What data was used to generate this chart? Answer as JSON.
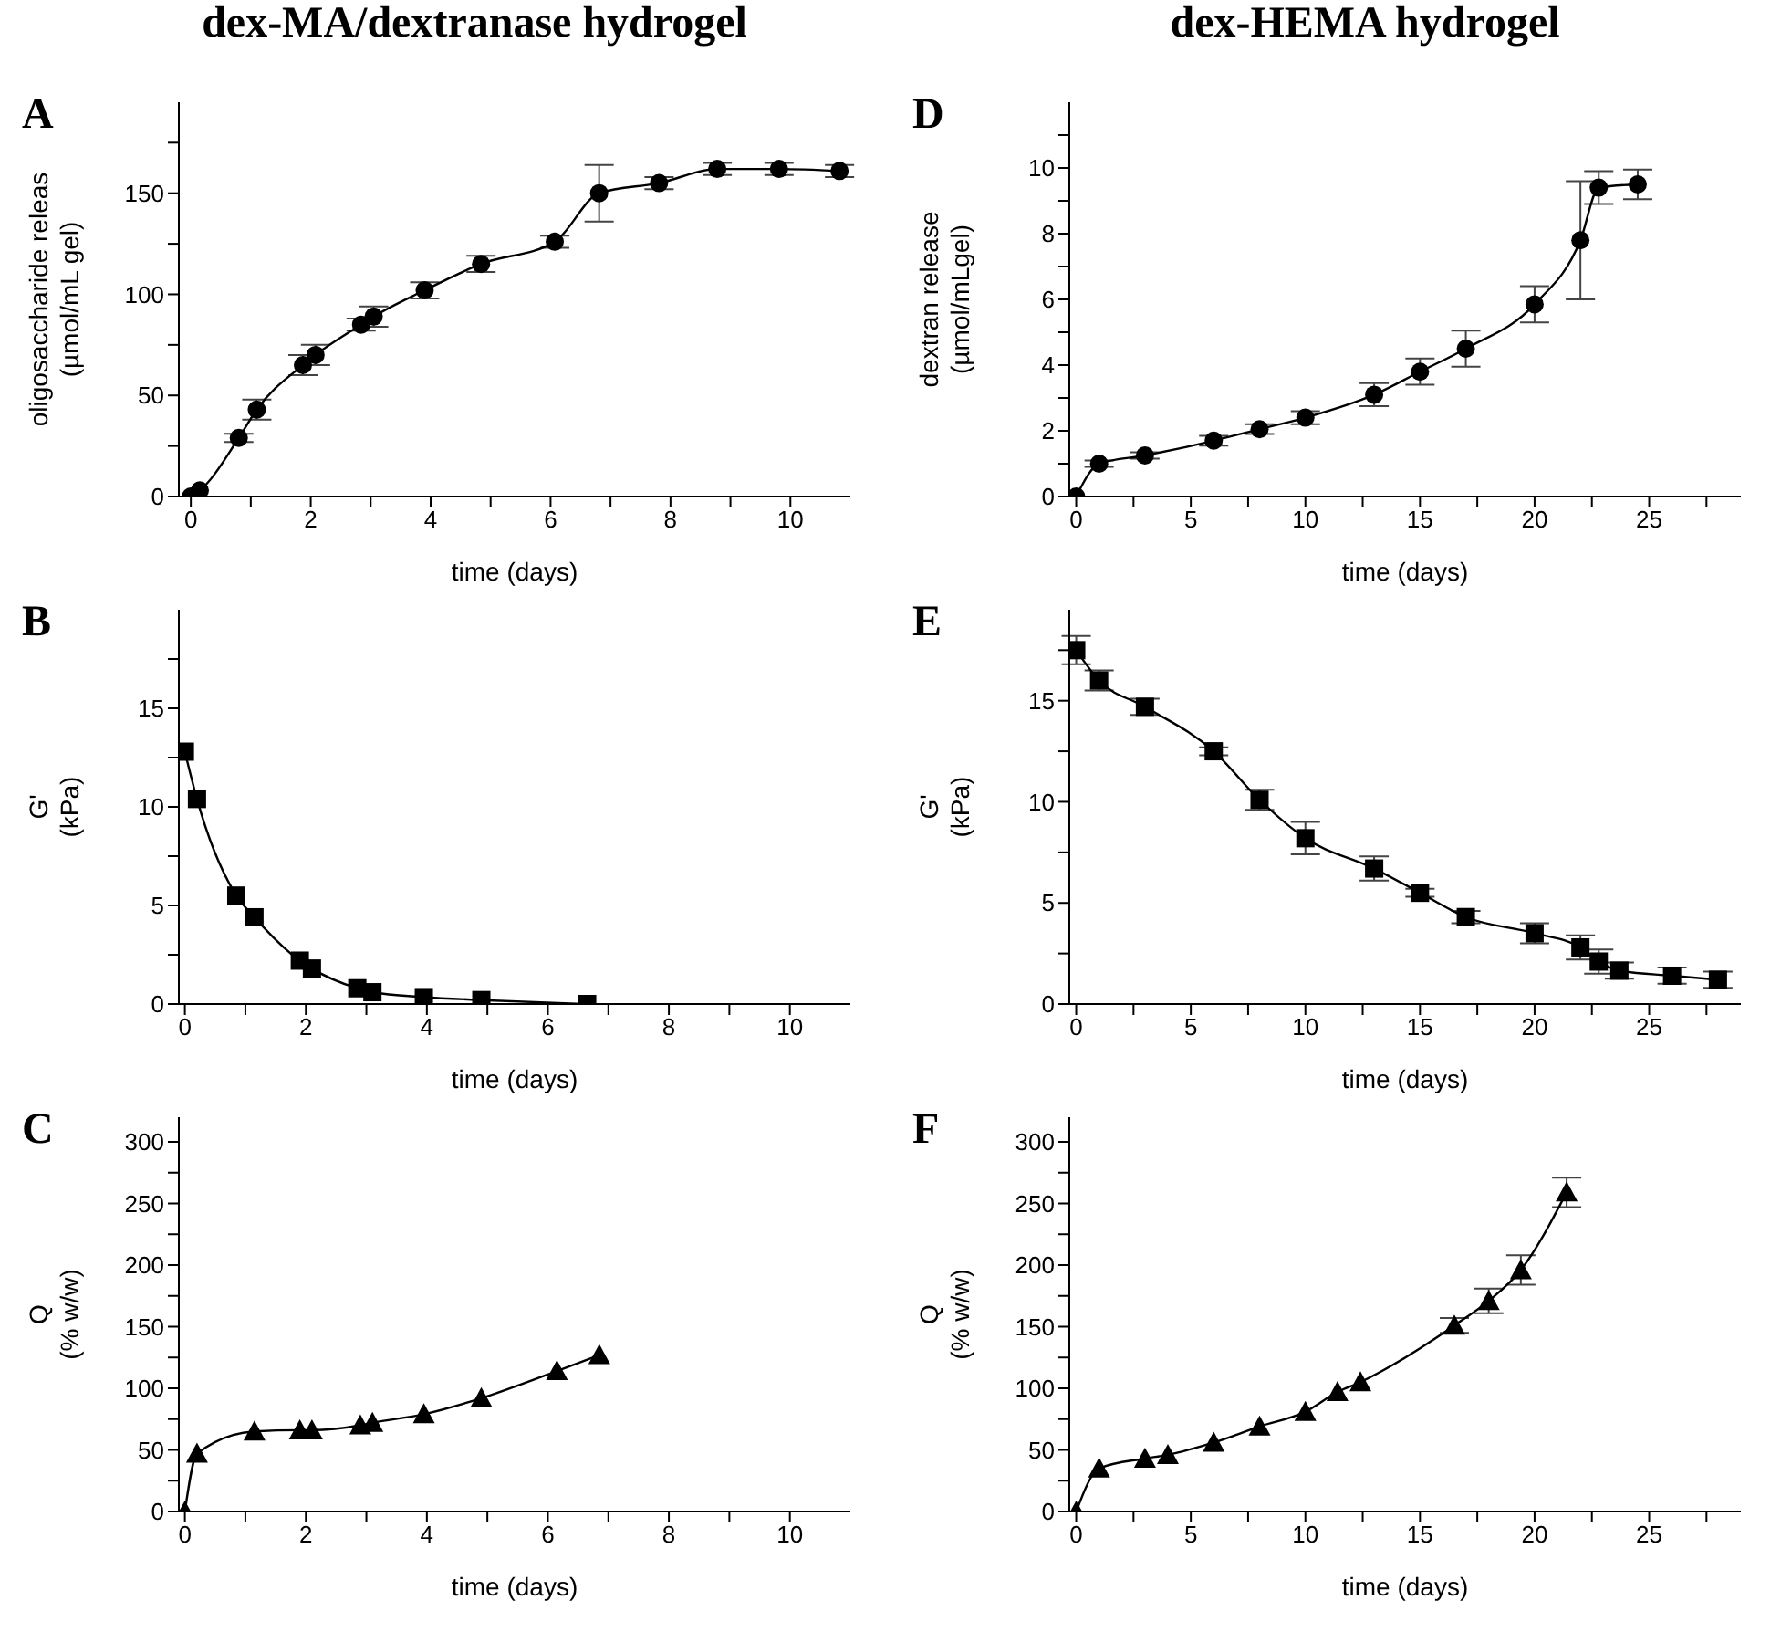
{
  "chart_data": [
    {
      "type": "line",
      "title": "dex-MA/dextranase hydrogel",
      "annotations": [
        "A"
      ],
      "xlabel": "time (days)",
      "ylabel": "oligosaccharide releas\n(µmol/mL gel)",
      "marker": "circle",
      "line_style": "solid",
      "grid": false,
      "legend": false,
      "x": [
        0,
        0.15,
        0.8,
        1.1,
        1.87,
        2.08,
        2.84,
        3.05,
        3.9,
        4.84,
        6.07,
        6.81,
        7.81,
        8.78,
        9.81,
        10.82
      ],
      "series": [
        {
          "color": "#000000",
          "values": [
            0,
            3,
            29,
            43,
            65,
            70,
            85,
            89,
            102,
            115,
            126,
            150,
            155,
            162,
            162,
            161
          ],
          "errors": [
            null,
            null,
            2,
            5,
            5,
            5,
            3,
            5,
            4,
            4,
            3,
            14,
            3,
            3,
            3,
            3
          ]
        }
      ],
      "xlim": [
        -0.2,
        11
      ],
      "xticks": [
        0,
        {
          "value": 1,
          "label": null
        },
        2,
        {
          "value": 3,
          "label": null
        },
        4,
        {
          "value": 5,
          "label": null
        },
        6,
        {
          "value": 7,
          "label": null
        },
        8,
        {
          "value": 9,
          "label": null
        },
        10
      ],
      "ylim": [
        0,
        195
      ],
      "yticks": [
        0,
        {
          "value": 25,
          "label": null
        },
        50,
        {
          "value": 75,
          "label": null
        },
        100,
        {
          "value": 125,
          "label": null
        },
        150,
        {
          "value": 175,
          "label": null
        }
      ]
    },
    {
      "type": "line",
      "title": "dex-HEMA hydrogel",
      "annotations": [
        "D"
      ],
      "xlabel": "time (days)",
      "ylabel": "dextran release\n(µmol/mLgel)",
      "marker": "circle",
      "line_style": "solid",
      "grid": false,
      "legend": false,
      "x": [
        0,
        1,
        3,
        6,
        8,
        10,
        13,
        15,
        17,
        20,
        22,
        22.8,
        24.5
      ],
      "series": [
        {
          "color": "#000000",
          "values": [
            0,
            1.0,
            1.25,
            1.7,
            2.05,
            2.4,
            3.1,
            3.8,
            4.5,
            5.85,
            7.8,
            9.4,
            9.5
          ],
          "errors": [
            null,
            0.1,
            0.1,
            0.15,
            0.15,
            0.2,
            0.35,
            0.4,
            0.55,
            0.55,
            1.8,
            0.5,
            0.45
          ]
        }
      ],
      "xlim": [
        -0.3,
        29
      ],
      "xticks": [
        0,
        {
          "value": 2.5,
          "label": null
        },
        5,
        {
          "value": 7.5,
          "label": null
        },
        10,
        {
          "value": 12.5,
          "label": null
        },
        15,
        {
          "value": 17.5,
          "label": null
        },
        20,
        {
          "value": 22.5,
          "label": null
        },
        25,
        {
          "value": 27.5,
          "label": null
        }
      ],
      "ylim": [
        0,
        12
      ],
      "yticks": [
        0,
        {
          "value": 1,
          "label": null
        },
        2,
        {
          "value": 3,
          "label": null
        },
        4,
        {
          "value": 5,
          "label": null
        },
        6,
        {
          "value": 7,
          "label": null
        },
        8,
        {
          "value": 9,
          "label": null
        },
        10,
        {
          "value": 11,
          "label": null
        }
      ]
    },
    {
      "type": "line",
      "annotations": [
        "B"
      ],
      "xlabel": "time (days)",
      "ylabel": "G'\n(kPa)",
      "marker": "square",
      "line_style": "solid",
      "grid": false,
      "legend": false,
      "x": [
        0,
        0.2,
        0.85,
        1.15,
        1.9,
        2.1,
        2.85,
        3.1,
        3.95,
        4.9,
        6.65
      ],
      "series": [
        {
          "color": "#000000",
          "values": [
            12.8,
            10.4,
            5.5,
            4.4,
            2.2,
            1.8,
            0.8,
            0.6,
            0.35,
            0.2,
            0
          ]
        }
      ],
      "xlim": [
        -0.1,
        11
      ],
      "xticks": [
        0,
        {
          "value": 1,
          "label": null
        },
        2,
        {
          "value": 3,
          "label": null
        },
        4,
        {
          "value": 5,
          "label": null
        },
        6,
        {
          "value": 7,
          "label": null
        },
        8,
        {
          "value": 9,
          "label": null
        },
        10
      ],
      "ylim": [
        0,
        20
      ],
      "yticks": [
        0,
        {
          "value": 2.5,
          "label": null
        },
        5,
        {
          "value": 7.5,
          "label": null
        },
        10,
        {
          "value": 12.5,
          "label": null
        },
        15,
        {
          "value": 17.5,
          "label": null
        }
      ]
    },
    {
      "type": "line",
      "annotations": [
        "E"
      ],
      "xlabel": "time (days)",
      "ylabel": "G'\n(kPa)",
      "marker": "square",
      "line_style": "solid",
      "grid": false,
      "legend": false,
      "x": [
        0,
        1,
        3,
        6,
        8,
        10,
        13,
        15,
        17,
        20,
        22,
        22.8,
        23.7,
        26,
        28
      ],
      "series": [
        {
          "color": "#000000",
          "values": [
            17.5,
            16,
            14.7,
            12.5,
            10.1,
            8.2,
            6.7,
            5.5,
            4.3,
            3.5,
            2.8,
            2.1,
            1.65,
            1.4,
            1.2
          ],
          "errors": [
            0.7,
            0.5,
            0.4,
            0.2,
            0.5,
            0.8,
            0.6,
            0.2,
            0.3,
            0.5,
            0.6,
            0.6,
            0.4,
            0.4,
            0.4
          ]
        }
      ],
      "xlim": [
        -0.3,
        29
      ],
      "xticks": [
        0,
        {
          "value": 2.5,
          "label": null
        },
        5,
        {
          "value": 7.5,
          "label": null
        },
        10,
        {
          "value": 12.5,
          "label": null
        },
        15,
        {
          "value": 17.5,
          "label": null
        },
        20,
        {
          "value": 22.5,
          "label": null
        },
        25,
        {
          "value": 27.5,
          "label": null
        }
      ],
      "ylim": [
        0,
        19.5
      ],
      "yticks": [
        0,
        {
          "value": 2.5,
          "label": null
        },
        5,
        {
          "value": 7.5,
          "label": null
        },
        10,
        {
          "value": 12.5,
          "label": null
        },
        15,
        {
          "value": 17.5,
          "label": null
        }
      ]
    },
    {
      "type": "line",
      "annotations": [
        "C"
      ],
      "xlabel": "time (days)",
      "ylabel": "Q\n(% w/w)",
      "marker": "triangle",
      "line_style": "solid",
      "grid": false,
      "legend": false,
      "x": [
        0,
        0.2,
        1.15,
        1.9,
        2.1,
        2.9,
        3.1,
        3.95,
        4.9,
        6.15,
        6.85
      ],
      "series": [
        {
          "color": "#000000",
          "values": [
            0,
            47,
            65,
            66,
            66,
            70,
            72,
            79,
            92,
            114,
            127
          ]
        }
      ],
      "xlim": [
        -0.1,
        11
      ],
      "xticks": [
        0,
        {
          "value": 1,
          "label": null
        },
        2,
        {
          "value": 3,
          "label": null
        },
        4,
        {
          "value": 5,
          "label": null
        },
        6,
        {
          "value": 7,
          "label": null
        },
        8,
        {
          "value": 9,
          "label": null
        },
        10
      ],
      "ylim": [
        0,
        320
      ],
      "yticks": [
        0,
        {
          "value": 25,
          "label": null
        },
        50,
        {
          "value": 75,
          "label": null
        },
        100,
        {
          "value": 125,
          "label": null
        },
        150,
        {
          "value": 175,
          "label": null
        },
        200,
        {
          "value": 225,
          "label": null
        },
        250,
        {
          "value": 275,
          "label": null
        },
        300
      ]
    },
    {
      "type": "line",
      "annotations": [
        "F"
      ],
      "xlabel": "time (days)",
      "ylabel": "Q\n(% w/w)",
      "marker": "triangle",
      "line_style": "solid",
      "grid": false,
      "legend": false,
      "x": [
        0,
        1,
        3,
        4,
        6,
        8,
        10,
        11.4,
        12.4,
        16.5,
        18,
        19.4,
        21.4
      ],
      "series": [
        {
          "color": "#000000",
          "values": [
            0,
            35,
            43,
            46,
            56,
            69,
            81,
            97,
            105,
            151,
            171,
            196,
            259
          ],
          "errors": [
            null,
            null,
            null,
            null,
            null,
            null,
            null,
            null,
            null,
            6,
            10,
            12,
            12
          ]
        }
      ],
      "xlim": [
        -0.3,
        29
      ],
      "xticks": [
        0,
        {
          "value": 2.5,
          "label": null
        },
        5,
        {
          "value": 7.5,
          "label": null
        },
        10,
        {
          "value": 12.5,
          "label": null
        },
        15,
        {
          "value": 17.5,
          "label": null
        },
        20,
        {
          "value": 22.5,
          "label": null
        },
        25,
        {
          "value": 27.5,
          "label": null
        }
      ],
      "ylim": [
        0,
        320
      ],
      "yticks": [
        0,
        {
          "value": 25,
          "label": null
        },
        50,
        {
          "value": 75,
          "label": null
        },
        100,
        {
          "value": 125,
          "label": null
        },
        150,
        {
          "value": 175,
          "label": null
        },
        200,
        {
          "value": 225,
          "label": null
        },
        250,
        {
          "value": 275,
          "label": null
        },
        300
      ]
    }
  ]
}
